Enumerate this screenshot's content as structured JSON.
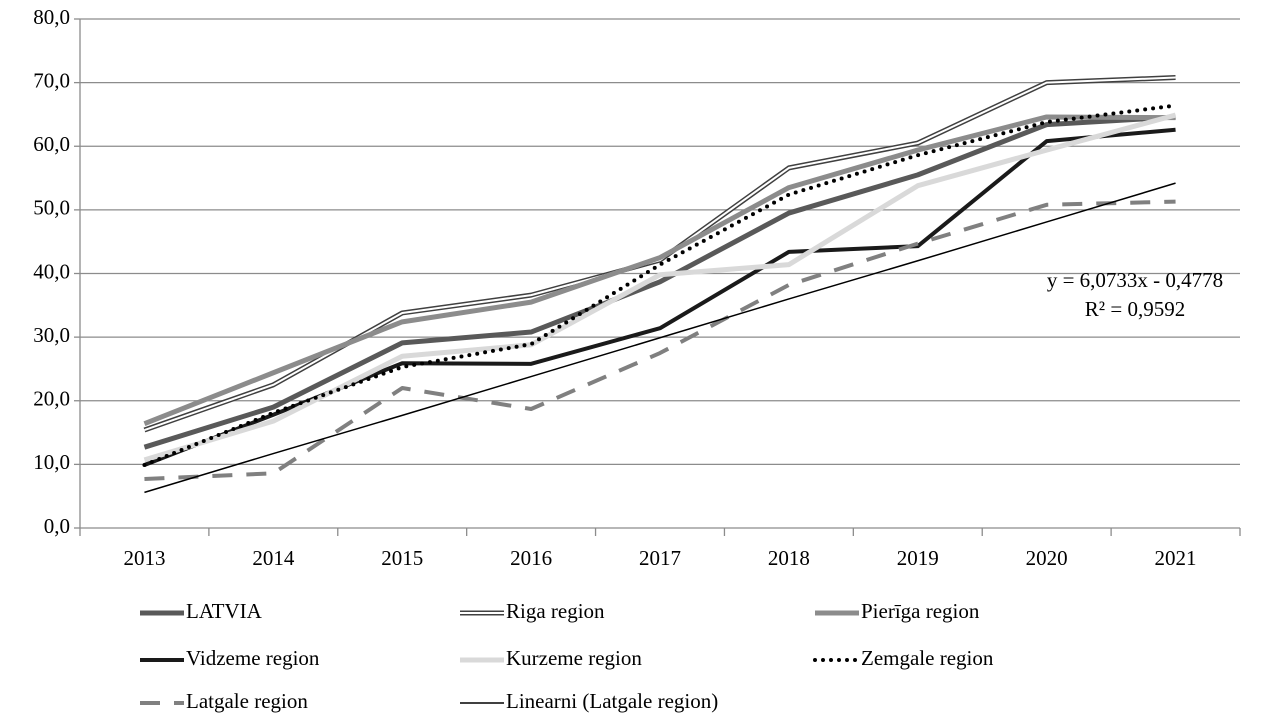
{
  "chart_data": {
    "type": "line",
    "categories": [
      "2013",
      "2014",
      "2015",
      "2016",
      "2017",
      "2018",
      "2019",
      "2020",
      "2021"
    ],
    "series": [
      {
        "name": "LATVIA",
        "color": "#595959",
        "line_style": "solid",
        "line_width": 5,
        "values": [
          12.7,
          19.0,
          29.1,
          30.8,
          38.7,
          49.5,
          55.5,
          63.4,
          64.6
        ]
      },
      {
        "name": "Riga region",
        "color": "#404040",
        "line_style": "double",
        "line_width": 5,
        "values": [
          15.4,
          22.5,
          33.8,
          36.6,
          42.1,
          56.6,
          60.5,
          70.0,
          70.8
        ]
      },
      {
        "name": "Pierīga region",
        "color": "#8c8c8c",
        "line_style": "solid",
        "line_width": 5,
        "values": [
          16.4,
          24.4,
          32.4,
          35.5,
          42.5,
          53.5,
          59.4,
          64.6,
          64.5
        ]
      },
      {
        "name": "Vidzeme region",
        "color": "#1a1a1a",
        "line_style": "solid",
        "line_width": 4,
        "values": [
          9.9,
          17.8,
          25.9,
          25.8,
          31.4,
          43.4,
          44.3,
          60.8,
          62.6
        ]
      },
      {
        "name": "Kurzeme region",
        "color": "#d9d9d9",
        "line_style": "solid",
        "line_width": 5,
        "values": [
          10.7,
          16.8,
          27.0,
          28.8,
          39.8,
          41.4,
          53.8,
          59.4,
          64.9
        ]
      },
      {
        "name": "Zemgale region",
        "color": "#000000",
        "line_style": "dotted",
        "line_width": 4,
        "values": [
          9.9,
          18.1,
          25.3,
          28.9,
          41.4,
          52.4,
          58.6,
          63.8,
          66.4
        ]
      },
      {
        "name": "Latgale region",
        "color": "#808080",
        "line_style": "dashed",
        "line_width": 4,
        "values": [
          7.7,
          8.6,
          22.0,
          18.7,
          27.5,
          38.2,
          44.7,
          50.8,
          51.3
        ]
      },
      {
        "name": "Linearni (Latgale region)",
        "color": "#000000",
        "line_style": "solid",
        "line_width": 1.5,
        "values": [
          5.6,
          11.7,
          17.7,
          23.8,
          29.9,
          36.0,
          42.0,
          48.1,
          54.2
        ]
      }
    ],
    "ylim": [
      0,
      80
    ],
    "yticks": [
      {
        "value": 0,
        "label": "0,0"
      },
      {
        "value": 10,
        "label": "10,0"
      },
      {
        "value": 20,
        "label": "20,0"
      },
      {
        "value": 30,
        "label": "30,0"
      },
      {
        "value": 40,
        "label": "40,0"
      },
      {
        "value": 50,
        "label": "50,0"
      },
      {
        "value": 60,
        "label": "60,0"
      },
      {
        "value": 70,
        "label": "70,0"
      },
      {
        "value": 80,
        "label": "80,0"
      }
    ],
    "grid": true,
    "legend": "bottom",
    "annotations": [
      "y = 6,0733x - 0,4778",
      "R² = 0,9592"
    ]
  }
}
